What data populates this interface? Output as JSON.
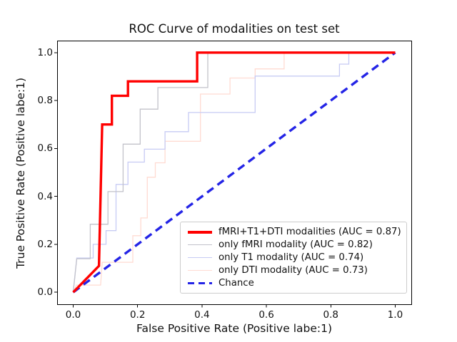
{
  "figure": {
    "title": "ROC Curve of modalities on test set",
    "xlabel": "False Positive Rate (Positive labe:1)",
    "ylabel": "True Positive Rate (Positive labe:1)"
  },
  "chart_data": {
    "type": "line",
    "subtype": "roc-step-curves",
    "title": "ROC Curve of modalities on test set",
    "xlabel": "False Positive Rate (Positive labe:1)",
    "ylabel": "True Positive Rate (Positive labe:1)",
    "xlim": [
      -0.05,
      1.05
    ],
    "ylim": [
      -0.05,
      1.05
    ],
    "grid": false,
    "legend_position": "lower right",
    "x_ticks": [
      0.0,
      0.2,
      0.4,
      0.6,
      0.8,
      1.0
    ],
    "x_tick_labels": [
      "0.0",
      "0.2",
      "0.4",
      "0.6",
      "0.8",
      "1.0"
    ],
    "y_ticks": [
      0.0,
      0.2,
      0.4,
      0.6,
      0.8,
      1.0
    ],
    "y_tick_labels": [
      "0.0",
      "0.2",
      "0.4",
      "0.6",
      "0.8",
      "1.0"
    ],
    "axis_color": "#000000",
    "series": [
      {
        "key": "only_dti",
        "name": "only DTI modality (AUC = 0.73)",
        "auc": 0.73,
        "color": "#ffdbd2",
        "width": 1.3,
        "dash": null,
        "points": [
          [
            0,
            0
          ],
          [
            0.01,
            0.03
          ],
          [
            0.085,
            0.03
          ],
          [
            0.09,
            0.125
          ],
          [
            0.185,
            0.125
          ],
          [
            0.185,
            0.236
          ],
          [
            0.21,
            0.236
          ],
          [
            0.21,
            0.31
          ],
          [
            0.23,
            0.31
          ],
          [
            0.23,
            0.48
          ],
          [
            0.255,
            0.48
          ],
          [
            0.255,
            0.54
          ],
          [
            0.285,
            0.54
          ],
          [
            0.285,
            0.63
          ],
          [
            0.395,
            0.63
          ],
          [
            0.395,
            0.827
          ],
          [
            0.487,
            0.827
          ],
          [
            0.487,
            0.894
          ],
          [
            0.565,
            0.894
          ],
          [
            0.565,
            0.932
          ],
          [
            0.655,
            0.932
          ],
          [
            0.655,
            1.0
          ],
          [
            1.0,
            1.0
          ]
        ]
      },
      {
        "key": "only_t1",
        "name": "only T1 modality (AUC = 0.74)",
        "auc": 0.74,
        "color": "#c7cbf4",
        "width": 1.3,
        "dash": null,
        "points": [
          [
            0,
            0
          ],
          [
            0.011,
            0.143
          ],
          [
            0.062,
            0.143
          ],
          [
            0.062,
            0.2
          ],
          [
            0.102,
            0.2
          ],
          [
            0.102,
            0.257
          ],
          [
            0.133,
            0.257
          ],
          [
            0.133,
            0.45
          ],
          [
            0.17,
            0.45
          ],
          [
            0.17,
            0.543
          ],
          [
            0.221,
            0.543
          ],
          [
            0.221,
            0.597
          ],
          [
            0.285,
            0.597
          ],
          [
            0.285,
            0.67
          ],
          [
            0.358,
            0.67
          ],
          [
            0.358,
            0.75
          ],
          [
            0.565,
            0.75
          ],
          [
            0.565,
            0.902
          ],
          [
            0.827,
            0.902
          ],
          [
            0.827,
            0.952
          ],
          [
            0.856,
            0.952
          ],
          [
            0.856,
            1.0
          ],
          [
            1.0,
            1.0
          ]
        ]
      },
      {
        "key": "only_fmri",
        "name": "only fMRI modality (AUC = 0.82)",
        "auc": 0.82,
        "color": "#c2c2ca",
        "width": 1.3,
        "dash": null,
        "points": [
          [
            0,
            0
          ],
          [
            0.011,
            0.14
          ],
          [
            0.053,
            0.14
          ],
          [
            0.053,
            0.284
          ],
          [
            0.108,
            0.284
          ],
          [
            0.108,
            0.42
          ],
          [
            0.155,
            0.42
          ],
          [
            0.155,
            0.618
          ],
          [
            0.208,
            0.618
          ],
          [
            0.208,
            0.764
          ],
          [
            0.263,
            0.764
          ],
          [
            0.263,
            0.854
          ],
          [
            0.418,
            0.854
          ],
          [
            0.418,
            1.0
          ],
          [
            1.0,
            1.0
          ]
        ]
      },
      {
        "key": "chance",
        "name": "Chance",
        "auc": null,
        "color": "#2424e6",
        "width": 3.4,
        "dash": [
          11,
          7
        ],
        "points": [
          [
            0,
            0
          ],
          [
            1.0,
            1.0
          ]
        ]
      },
      {
        "key": "fmri_t1_dti",
        "name": "fMRI+T1+DTI modalities (AUC = 0.87)",
        "auc": 0.87,
        "color": "#ff0000",
        "width": 3.4,
        "dash": null,
        "points": [
          [
            0,
            0
          ],
          [
            0.08,
            0.11
          ],
          [
            0.09,
            0.7
          ],
          [
            0.12,
            0.7
          ],
          [
            0.12,
            0.82
          ],
          [
            0.17,
            0.82
          ],
          [
            0.17,
            0.88
          ],
          [
            0.385,
            0.88
          ],
          [
            0.385,
            1.0
          ],
          [
            1.0,
            1.0
          ]
        ]
      }
    ],
    "legend_order": [
      "fmri_t1_dti",
      "only_fmri",
      "only_t1",
      "only_dti",
      "chance"
    ]
  }
}
